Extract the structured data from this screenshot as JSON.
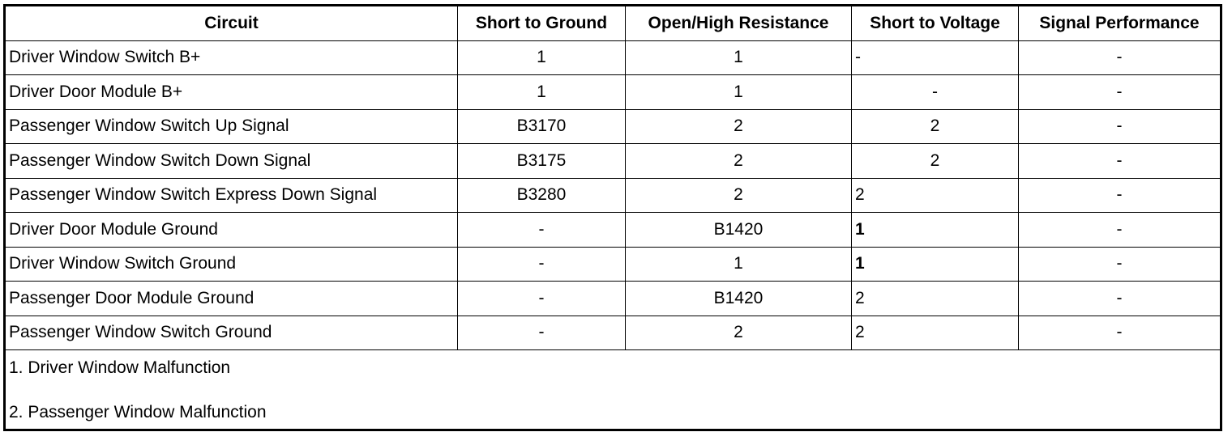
{
  "headers": [
    "Circuit",
    "Short to Ground",
    "Open/High Resistance",
    "Short to Voltage",
    "Signal Performance"
  ],
  "rows": [
    {
      "circuit": "Driver Window Switch B+",
      "short_to_ground": "1",
      "open_high_resistance": "1",
      "short_to_voltage": "-",
      "signal_performance": "-"
    },
    {
      "circuit": "Driver Door Module B+",
      "short_to_ground": "1",
      "open_high_resistance": "1",
      "short_to_voltage": "-",
      "signal_performance": "-"
    },
    {
      "circuit": "Passenger Window Switch Up Signal",
      "short_to_ground": "B3170",
      "open_high_resistance": "2",
      "short_to_voltage": "2",
      "signal_performance": "-"
    },
    {
      "circuit": "Passenger Window Switch Down Signal",
      "short_to_ground": "B3175",
      "open_high_resistance": "2",
      "short_to_voltage": "2",
      "signal_performance": "-"
    },
    {
      "circuit": "Passenger Window Switch Express Down Signal",
      "short_to_ground": "B3280",
      "open_high_resistance": "2",
      "short_to_voltage": "2",
      "signal_performance": "-"
    },
    {
      "circuit": "Driver Door Module Ground",
      "short_to_ground": "-",
      "open_high_resistance": "B1420",
      "short_to_voltage": "1",
      "signal_performance": "-"
    },
    {
      "circuit": "Driver Window Switch Ground",
      "short_to_ground": "-",
      "open_high_resistance": "1",
      "short_to_voltage": "1",
      "signal_performance": "-"
    },
    {
      "circuit": "Passenger Door Module Ground",
      "short_to_ground": "-",
      "open_high_resistance": "B1420",
      "short_to_voltage": "2",
      "signal_performance": "-"
    },
    {
      "circuit": "Passenger Window Switch Ground",
      "short_to_ground": "-",
      "open_high_resistance": "2",
      "short_to_voltage": "2",
      "signal_performance": "-"
    }
  ],
  "notes": [
    "1. Driver Window Malfunction",
    "2. Passenger Window Malfunction"
  ]
}
